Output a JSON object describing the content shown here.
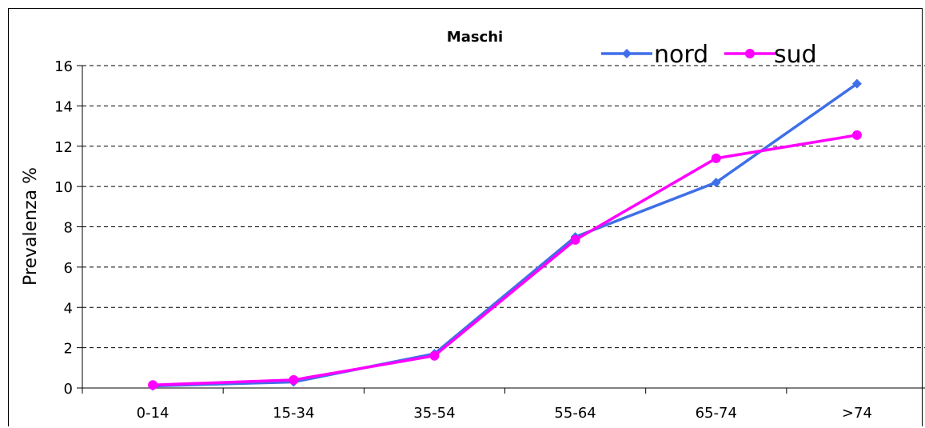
{
  "chart_data": {
    "type": "line",
    "title": "Maschi",
    "xlabel": "",
    "ylabel": "Prevalenza %",
    "categories": [
      "0-14",
      "15-34",
      "35-54",
      "55-64",
      "65-74",
      ">74"
    ],
    "ylim": [
      0,
      16
    ],
    "yticks": [
      0,
      2,
      4,
      6,
      8,
      10,
      12,
      14,
      16
    ],
    "grid": "horizontal dashed",
    "legend": "top-right",
    "series": [
      {
        "name": "nord",
        "color": "#3f6fe8",
        "marker": "diamond",
        "values": [
          0.1,
          0.3,
          1.7,
          7.5,
          10.2,
          15.1
        ]
      },
      {
        "name": "sud",
        "color": "#ff00ff",
        "marker": "circle",
        "values": [
          0.15,
          0.4,
          1.6,
          7.35,
          11.4,
          12.55
        ]
      }
    ]
  }
}
